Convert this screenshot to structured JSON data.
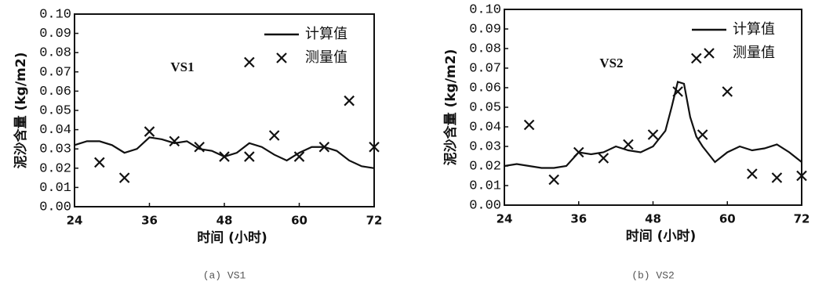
{
  "chart_data": [
    {
      "type": "line",
      "annotation": "VS1",
      "caption": "(a) VS1",
      "xlabel": "时间 (小时)",
      "ylabel": "泥沙含量 (kg/m2)",
      "xlim": [
        24,
        72
      ],
      "xticks": [
        24,
        36,
        48,
        60,
        72
      ],
      "ylim": [
        0,
        0.1
      ],
      "yticks": [
        {
          "value": 0,
          "label": "0.00"
        },
        0.01,
        0.02,
        0.03,
        0.04,
        0.05,
        0.06,
        0.07,
        0.08,
        0.09,
        {
          "value": 0.1,
          "label": "0.10"
        }
      ],
      "legend": "upper right",
      "series": [
        {
          "name": "计算值",
          "style": "line",
          "color": "#111",
          "x": [
            24,
            26,
            28,
            30,
            32,
            34,
            36,
            38,
            40,
            42,
            44,
            46,
            48,
            50,
            52,
            54,
            56,
            58,
            60,
            62,
            64,
            66,
            68,
            70,
            72
          ],
          "values": [
            0.032,
            0.034,
            0.034,
            0.032,
            0.028,
            0.03,
            0.036,
            0.035,
            0.033,
            0.034,
            0.03,
            0.029,
            0.026,
            0.028,
            0.033,
            0.031,
            0.027,
            0.024,
            0.028,
            0.031,
            0.031,
            0.029,
            0.024,
            0.021,
            0.02
          ]
        },
        {
          "name": "测量值",
          "style": "marker",
          "color": "#111",
          "x": [
            28,
            32,
            36,
            40,
            44,
            48,
            52,
            52,
            56,
            60,
            64,
            68,
            72
          ],
          "values": [
            0.023,
            0.015,
            0.039,
            0.034,
            0.031,
            0.026,
            0.026,
            0.075,
            0.037,
            0.026,
            0.031,
            0.055,
            0.031
          ]
        }
      ]
    },
    {
      "type": "line",
      "annotation": "VS2",
      "caption": "(b) VS2",
      "xlabel": "时间 (小时)",
      "ylabel": "泥沙含量 (kg/m2)",
      "xlim": [
        24,
        72
      ],
      "xticks": [
        24,
        36,
        48,
        60,
        72
      ],
      "ylim": [
        0,
        0.1
      ],
      "yticks": [
        {
          "value": 0,
          "label": "0.00"
        },
        0.01,
        0.02,
        0.03,
        0.04,
        0.05,
        0.06,
        0.07,
        0.08,
        0.09,
        {
          "value": 0.1,
          "label": "0.10"
        }
      ],
      "legend": "upper right",
      "series": [
        {
          "name": "计算值",
          "style": "line",
          "color": "#111",
          "x": [
            24,
            26,
            28,
            30,
            32,
            34,
            36,
            38,
            40,
            42,
            44,
            46,
            48,
            50,
            51,
            52,
            53,
            54,
            55,
            56,
            58,
            60,
            62,
            64,
            66,
            68,
            70,
            72
          ],
          "values": [
            0.02,
            0.021,
            0.02,
            0.019,
            0.019,
            0.02,
            0.027,
            0.026,
            0.027,
            0.03,
            0.028,
            0.027,
            0.03,
            0.038,
            0.05,
            0.063,
            0.062,
            0.045,
            0.035,
            0.03,
            0.022,
            0.027,
            0.03,
            0.028,
            0.029,
            0.031,
            0.027,
            0.022
          ]
        },
        {
          "name": "测量值",
          "style": "marker",
          "color": "#111",
          "x": [
            28,
            32,
            36,
            40,
            44,
            48,
            52,
            55,
            56,
            60,
            64,
            68,
            72
          ],
          "values": [
            0.041,
            0.013,
            0.027,
            0.024,
            0.031,
            0.036,
            0.058,
            0.075,
            0.036,
            0.058,
            0.016,
            0.014,
            0.015
          ]
        }
      ]
    }
  ]
}
